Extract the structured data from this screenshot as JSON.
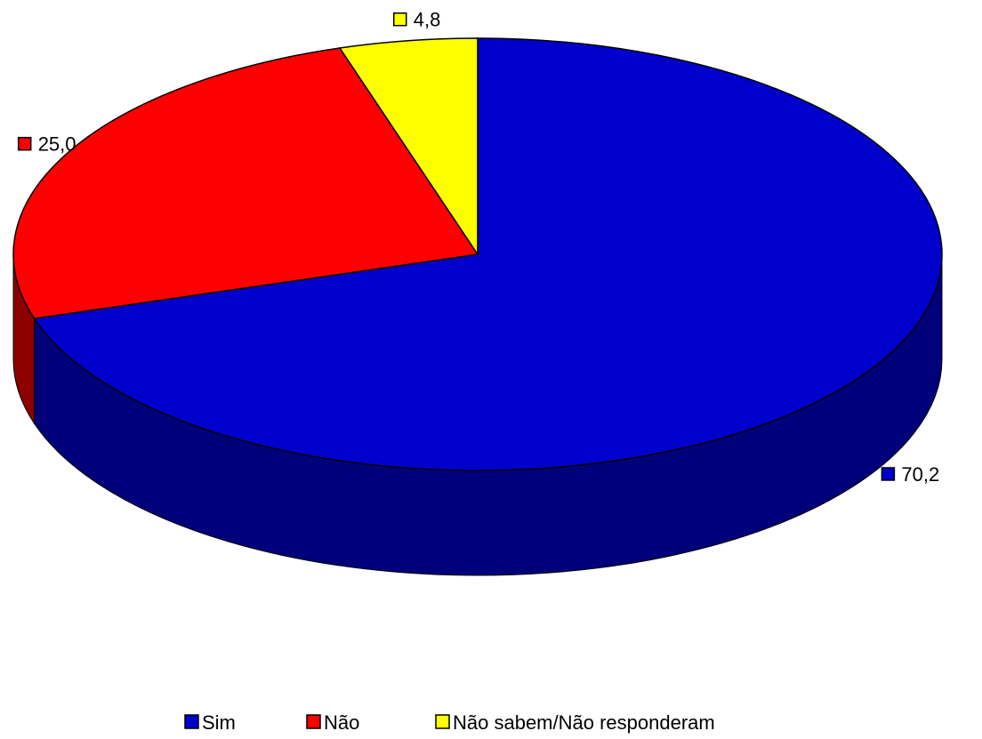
{
  "chart_data": {
    "type": "pie",
    "three_d": true,
    "title": "",
    "categories": [
      "Sim",
      "Não",
      "Não sabem/Não responderam"
    ],
    "values": [
      70.2,
      25.0,
      4.8
    ],
    "value_labels": [
      "70,2",
      "25,0",
      "4,8"
    ],
    "colors": [
      "#0000CC",
      "#FF0000",
      "#FFFF00"
    ],
    "legend_position": "bottom"
  }
}
